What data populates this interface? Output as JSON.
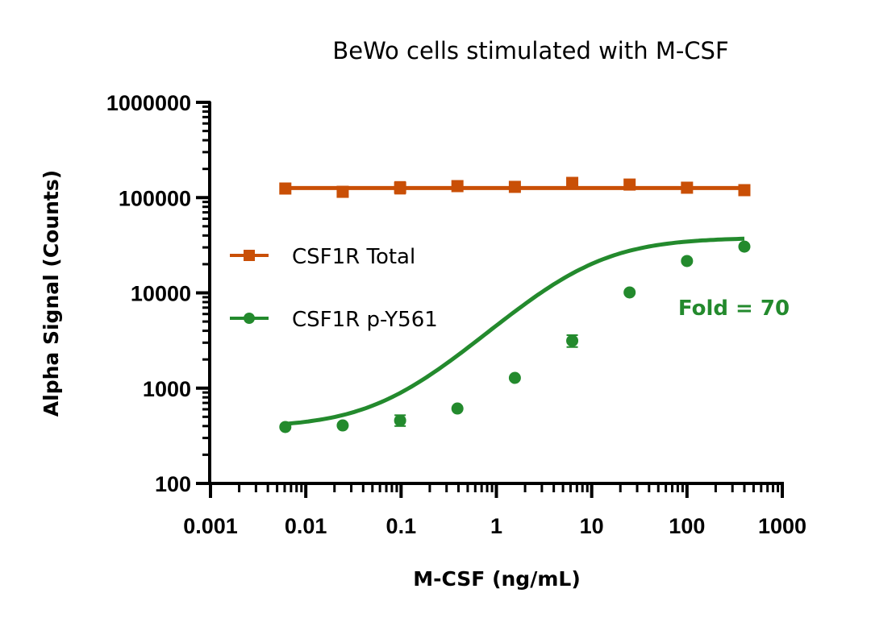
{
  "chart_data": {
    "type": "scatter",
    "title": "BeWo cells stimulated with M-CSF",
    "xlabel": "M-CSF (ng/mL)",
    "ylabel": "Alpha Signal (Counts)",
    "xscale": "log",
    "yscale": "log",
    "xlim": [
      0.001,
      1000
    ],
    "ylim": [
      100,
      1000000
    ],
    "xticks": [
      0.001,
      0.01,
      0.1,
      1,
      10,
      100,
      1000
    ],
    "xtick_labels": [
      "0.001",
      "0.01",
      "0.1",
      "1",
      "10",
      "100",
      "1000"
    ],
    "yticks": [
      100,
      1000,
      10000,
      100000,
      1000000
    ],
    "ytick_labels": [
      "100",
      "1000",
      "10000",
      "100000",
      "1000000"
    ],
    "grid": false,
    "legend_position": "center-left",
    "x": [
      0.0061,
      0.0244,
      0.0977,
      0.39,
      1.5625,
      6.25,
      25,
      100,
      400
    ],
    "series": [
      {
        "name": "CSF1R Total",
        "color": "#C94F06",
        "marker": "square",
        "fit": "flat",
        "values": [
          124500,
          115000,
          127000,
          132000,
          129600,
          142700,
          137000,
          127000,
          119700
        ],
        "error": [
          null,
          null,
          [
            110000,
            146000
          ],
          null,
          null,
          null,
          null,
          null,
          null
        ],
        "fit_value": 126000
      },
      {
        "name": "CSF1R p-Y561",
        "color": "#238A2D",
        "marker": "circle",
        "fit": "sigmoidal",
        "values": [
          391,
          406,
          457,
          611,
          1282,
          3140,
          10100,
          21600,
          30600
        ],
        "error": [
          null,
          null,
          [
            400,
            520
          ],
          null,
          null,
          [
            2700,
            3600
          ],
          null,
          null,
          null
        ],
        "fit_params": {
          "bottom": 385,
          "top": 38000,
          "ec50": 9,
          "hill": 0.95
        }
      }
    ],
    "annotations": [
      {
        "text": "Fold = 70",
        "color": "#238A2D",
        "series": "CSF1R p-Y561"
      }
    ]
  }
}
